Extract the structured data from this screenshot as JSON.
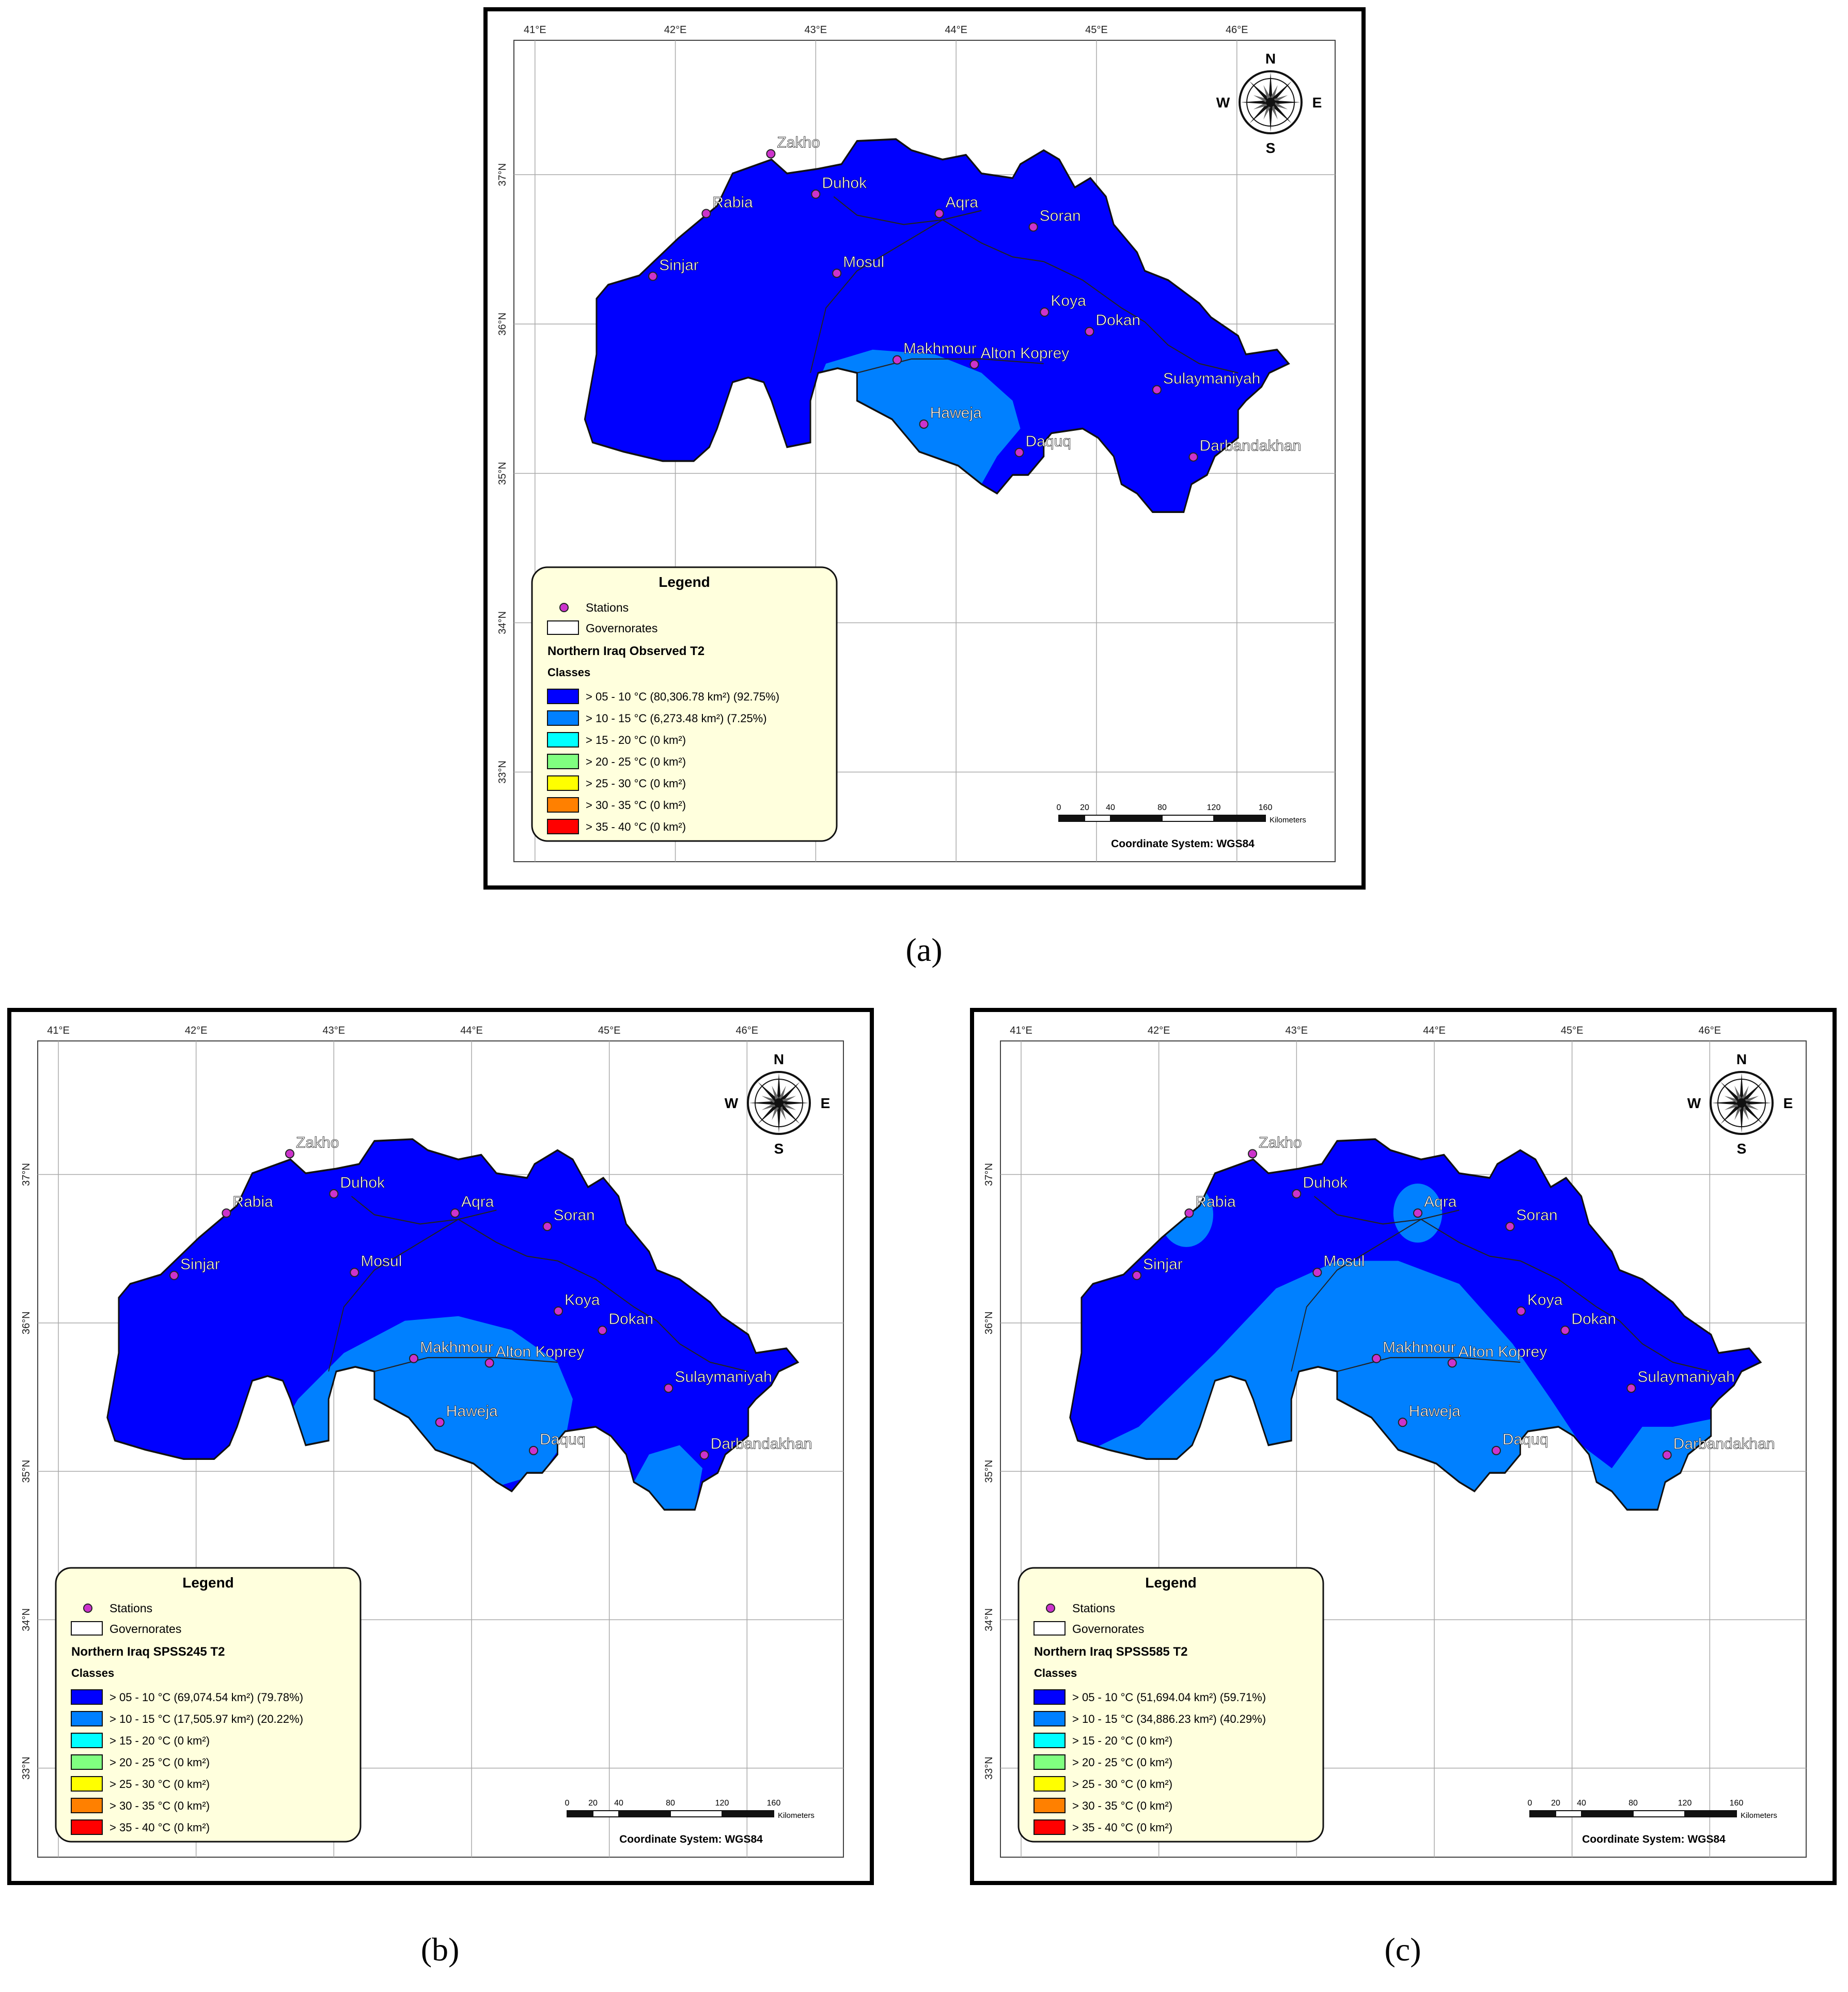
{
  "colors": {
    "class_05_10": "#0000ff",
    "class_10_15": "#0080ff",
    "class_15_20": "#00ffff",
    "class_20_25": "#80ff80",
    "class_25_30": "#ffff00",
    "class_30_35": "#ff8000",
    "class_35_40": "#ff0000",
    "station": "#cc33cc",
    "legend_bg": "#ffffdd",
    "frame": "#000000"
  },
  "grid": {
    "lon_labels": [
      "41°E",
      "42°E",
      "43°E",
      "44°E",
      "45°E",
      "46°E"
    ],
    "lat_labels": [
      "37°N",
      "36°N",
      "35°N",
      "34°N",
      "33°N"
    ]
  },
  "compass": {
    "n": "N",
    "s": "S",
    "e": "E",
    "w": "W"
  },
  "stations": [
    {
      "name": "Zakho",
      "lon": 42.68,
      "lat": 37.14
    },
    {
      "name": "Duhok",
      "lon": 43.0,
      "lat": 36.87
    },
    {
      "name": "Rabia",
      "lon": 42.22,
      "lat": 36.74
    },
    {
      "name": "Aqra",
      "lon": 43.88,
      "lat": 36.74
    },
    {
      "name": "Soran",
      "lon": 44.55,
      "lat": 36.65
    },
    {
      "name": "Sinjar",
      "lon": 41.84,
      "lat": 36.32
    },
    {
      "name": "Mosul",
      "lon": 43.15,
      "lat": 36.34
    },
    {
      "name": "Koya",
      "lon": 44.63,
      "lat": 36.08
    },
    {
      "name": "Dokan",
      "lon": 44.95,
      "lat": 35.95
    },
    {
      "name": "Makhmour",
      "lon": 43.58,
      "lat": 35.76
    },
    {
      "name": "Alton Koprey",
      "lon": 44.13,
      "lat": 35.73
    },
    {
      "name": "Haweja",
      "lon": 43.77,
      "lat": 35.33
    },
    {
      "name": "Daquq",
      "lon": 44.45,
      "lat": 35.14
    },
    {
      "name": "Sulaymaniyah",
      "lon": 45.43,
      "lat": 35.56
    },
    {
      "name": "Darbandakhan",
      "lon": 45.69,
      "lat": 35.11
    }
  ],
  "legend": {
    "title": "Legend",
    "stations_label": "Stations",
    "governorates_label": "Governorates",
    "classes_heading": "Classes"
  },
  "scale_bar": {
    "ticks": [
      "0",
      "20",
      "40",
      "80",
      "120",
      "160"
    ],
    "unit": "Kilometers",
    "coordinate_system": "Coordinate System: WGS84"
  },
  "panels": [
    {
      "caption": "(a)",
      "layer_title": "Northern Iraq Observed T2",
      "classes": [
        {
          "label": "> 05 - 10 °C (80,306.78 km²) (92.75%)",
          "color_key": "class_05_10",
          "area_km2": 80306.78,
          "percent": 92.75
        },
        {
          "label": "> 10 - 15 °C (6,273.48 km²) (7.25%)",
          "color_key": "class_10_15",
          "area_km2": 6273.48,
          "percent": 7.25
        },
        {
          "label": "> 15 - 20 °C (0 km²)",
          "color_key": "class_15_20",
          "area_km2": 0
        },
        {
          "label": "> 20 - 25 °C (0 km²)",
          "color_key": "class_20_25",
          "area_km2": 0
        },
        {
          "label": "> 25 - 30 °C (0 km²)",
          "color_key": "class_25_30",
          "area_km2": 0
        },
        {
          "label": "> 30 - 35 °C (0 km²)",
          "color_key": "class_30_35",
          "area_km2": 0
        },
        {
          "label": "> 35 - 40 °C (0 km²)",
          "color_key": "class_35_40",
          "area_km2": 0
        }
      ]
    },
    {
      "caption": "(b)",
      "layer_title": "Northern Iraq SPSS245 T2",
      "classes": [
        {
          "label": "> 05 - 10 °C (69,074.54 km²) (79.78%)",
          "color_key": "class_05_10",
          "area_km2": 69074.54,
          "percent": 79.78
        },
        {
          "label": "> 10 - 15 °C (17,505.97 km²) (20.22%)",
          "color_key": "class_10_15",
          "area_km2": 17505.97,
          "percent": 20.22
        },
        {
          "label": "> 15 - 20 °C (0 km²)",
          "color_key": "class_15_20",
          "area_km2": 0
        },
        {
          "label": "> 20 - 25 °C (0 km²)",
          "color_key": "class_20_25",
          "area_km2": 0
        },
        {
          "label": "> 25 - 30 °C (0 km²)",
          "color_key": "class_25_30",
          "area_km2": 0
        },
        {
          "label": "> 30 - 35 °C (0 km²)",
          "color_key": "class_30_35",
          "area_km2": 0
        },
        {
          "label": "> 35 - 40 °C (0 km²)",
          "color_key": "class_35_40",
          "area_km2": 0
        }
      ]
    },
    {
      "caption": "(c)",
      "layer_title": "Northern Iraq SPSS585 T2",
      "classes": [
        {
          "label": "> 05 - 10 °C (51,694.04 km²) (59.71%)",
          "color_key": "class_05_10",
          "area_km2": 51694.04,
          "percent": 59.71
        },
        {
          "label": "> 10 - 15 °C (34,886.23 km²) (40.29%)",
          "color_key": "class_10_15",
          "area_km2": 34886.23,
          "percent": 40.29
        },
        {
          "label": "> 15 - 20 °C (0 km²)",
          "color_key": "class_15_20",
          "area_km2": 0
        },
        {
          "label": "> 20 - 25 °C (0 km²)",
          "color_key": "class_20_25",
          "area_km2": 0
        },
        {
          "label": "> 25 - 30 °C (0 km²)",
          "color_key": "class_25_30",
          "area_km2": 0
        },
        {
          "label": "> 30 - 35 °C (0 km²)",
          "color_key": "class_30_35",
          "area_km2": 0
        },
        {
          "label": "> 35 - 40 °C (0 km²)",
          "color_key": "class_35_40",
          "area_km2": 0
        }
      ]
    }
  ]
}
